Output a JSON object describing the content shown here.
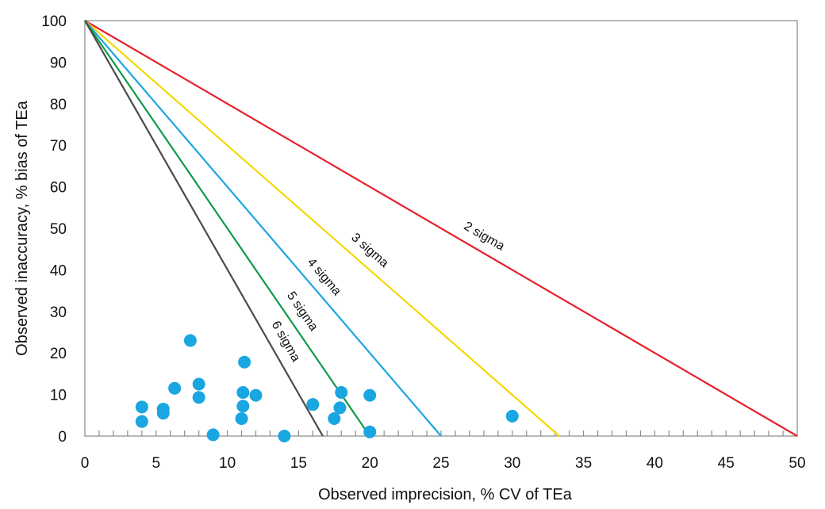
{
  "chart_data": {
    "type": "scatter",
    "title": "",
    "xlabel": "Observed imprecision, % CV of TEa",
    "ylabel": "Observed inaccuracy, % bias of TEa",
    "xlim": [
      0,
      50
    ],
    "ylim": [
      0,
      100
    ],
    "x_ticks": [
      "0",
      "5",
      "10",
      "15",
      "20",
      "25",
      "30",
      "35",
      "40",
      "45",
      "50"
    ],
    "y_ticks": [
      "0",
      "10",
      "20",
      "30",
      "40",
      "50",
      "60",
      "70",
      "80",
      "90",
      "100"
    ],
    "grid": false,
    "sigma_lines": [
      {
        "label": "2 sigma",
        "x_intercept": 50,
        "y_intercept": 100,
        "color": "#e8202a"
      },
      {
        "label": "3 sigma",
        "x_intercept": 33.3,
        "y_intercept": 100,
        "color": "#f5d800"
      },
      {
        "label": "4 sigma",
        "x_intercept": 25,
        "y_intercept": 100,
        "color": "#1aa6e0"
      },
      {
        "label": "5 sigma",
        "x_intercept": 20,
        "y_intercept": 100,
        "color": "#0f9a48"
      },
      {
        "label": "6 sigma",
        "x_intercept": 16.7,
        "y_intercept": 100,
        "color": "#4a4a4a"
      }
    ],
    "points_color": "#1aa6e0",
    "points": [
      {
        "x": 4.0,
        "y": 7.0
      },
      {
        "x": 4.0,
        "y": 3.5
      },
      {
        "x": 5.5,
        "y": 6.5
      },
      {
        "x": 5.5,
        "y": 5.5
      },
      {
        "x": 6.3,
        "y": 11.5
      },
      {
        "x": 7.4,
        "y": 23.0
      },
      {
        "x": 8.0,
        "y": 12.5
      },
      {
        "x": 8.0,
        "y": 9.3
      },
      {
        "x": 9.0,
        "y": 0.3
      },
      {
        "x": 11.0,
        "y": 4.2
      },
      {
        "x": 11.1,
        "y": 7.2
      },
      {
        "x": 11.1,
        "y": 10.5
      },
      {
        "x": 11.2,
        "y": 17.8
      },
      {
        "x": 12.0,
        "y": 9.8
      },
      {
        "x": 14.0,
        "y": 0.0
      },
      {
        "x": 16.0,
        "y": 7.6
      },
      {
        "x": 17.5,
        "y": 4.2
      },
      {
        "x": 17.9,
        "y": 6.8
      },
      {
        "x": 18.0,
        "y": 10.5
      },
      {
        "x": 20.0,
        "y": 9.8
      },
      {
        "x": 20.0,
        "y": 1.0
      },
      {
        "x": 30.0,
        "y": 4.8
      }
    ]
  }
}
